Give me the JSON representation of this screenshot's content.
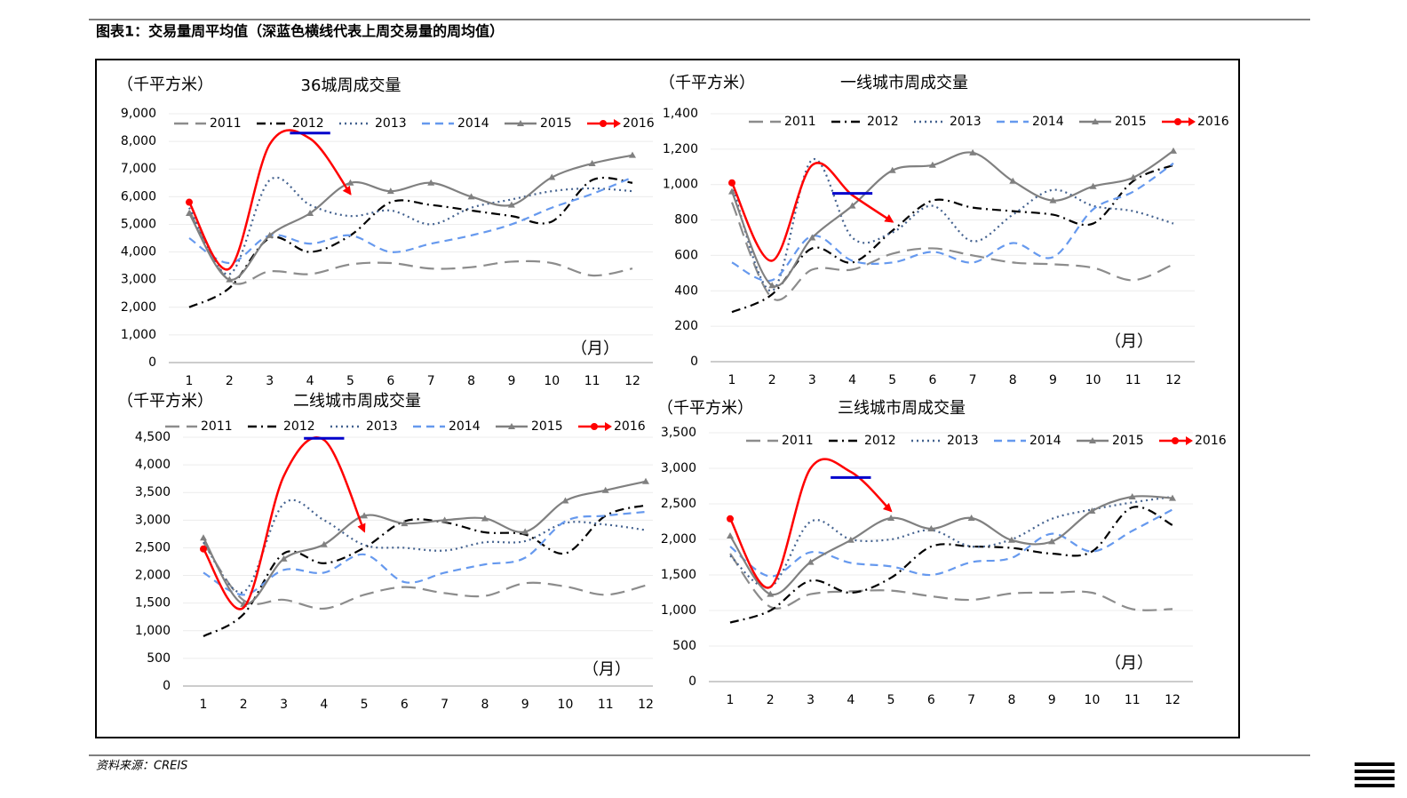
{
  "header": {
    "title": "图表1：交易量周平均值（深蓝色横线代表上周交易量的周均值）"
  },
  "source": "资料来源：CREIS",
  "chart_data": [
    {
      "type": "line",
      "title": "36城周成交量",
      "unit_label": "（千平方米）",
      "x_label": "（月）",
      "categories": [
        "1",
        "2",
        "3",
        "4",
        "5",
        "6",
        "7",
        "8",
        "9",
        "10",
        "11",
        "12"
      ],
      "ylim": [
        0,
        9000
      ],
      "yticks": [
        {
          "value": 0,
          "label": "0"
        },
        {
          "value": 1000,
          "label": "1,000"
        },
        {
          "value": 2000,
          "label": "2,000"
        },
        {
          "value": 3000,
          "label": "3,000"
        },
        {
          "value": 4000,
          "label": "4,000"
        },
        {
          "value": 5000,
          "label": "5,000"
        },
        {
          "value": 6000,
          "label": "6,000"
        },
        {
          "value": 7000,
          "label": "7,000"
        },
        {
          "value": 8000,
          "label": "8,000"
        },
        {
          "value": 9000,
          "label": "9,000"
        }
      ],
      "grid": true,
      "reference_line": {
        "value": 8300,
        "color": "#0000cc"
      },
      "series": [
        {
          "name": "2011",
          "color": "#8c8c8c",
          "dash": "16,8",
          "values": [
            5500,
            2950,
            3300,
            3200,
            3550,
            3600,
            3400,
            3450,
            3650,
            3600,
            3150,
            3400
          ]
        },
        {
          "name": "2012",
          "color": "#000000",
          "dash": "10,5,2,5",
          "values": [
            2000,
            2700,
            4500,
            4000,
            4600,
            5800,
            5700,
            5500,
            5300,
            5100,
            6600,
            6500
          ]
        },
        {
          "name": "2013",
          "color": "#44628f",
          "dash": "2,4",
          "values": [
            5600,
            3200,
            6600,
            5700,
            5300,
            5500,
            5000,
            5600,
            5900,
            6200,
            6300,
            6200
          ]
        },
        {
          "name": "2014",
          "color": "#6699ee",
          "dash": "9,6",
          "values": [
            4500,
            3600,
            4600,
            4300,
            4600,
            4000,
            4300,
            4600,
            5000,
            5600,
            6100,
            6700
          ]
        },
        {
          "name": "2015",
          "color": "#808080",
          "marker": "triangle",
          "values": [
            5400,
            3000,
            4600,
            5400,
            6500,
            6200,
            6500,
            6000,
            5700,
            6700,
            7200,
            7500
          ]
        },
        {
          "name": "2016",
          "color": "#ff0000",
          "marker": "circle",
          "values": [
            5800,
            3400,
            7900,
            8100,
            6100,
            null,
            null,
            null,
            null,
            null,
            null,
            null
          ]
        }
      ]
    },
    {
      "type": "line",
      "title": "一线城市周成交量",
      "unit_label": "（千平方米）",
      "x_label": "（月）",
      "categories": [
        "1",
        "2",
        "3",
        "4",
        "5",
        "6",
        "7",
        "8",
        "9",
        "10",
        "11",
        "12"
      ],
      "ylim": [
        0,
        1400
      ],
      "yticks": [
        0,
        200,
        400,
        600,
        800,
        {
          "value": 1000,
          "label": "1,000"
        },
        {
          "value": 1200,
          "label": "1,200"
        },
        {
          "value": 1400,
          "label": "1,400"
        }
      ],
      "grid": true,
      "reference_line": {
        "value": 950,
        "color": "#0000cc"
      },
      "series": [
        {
          "name": "2011",
          "color": "#8c8c8c",
          "dash": "16,8",
          "values": [
            900,
            360,
            520,
            520,
            610,
            640,
            600,
            560,
            550,
            530,
            460,
            550
          ]
        },
        {
          "name": "2012",
          "color": "#000000",
          "dash": "10,5,2,5",
          "values": [
            280,
            380,
            640,
            560,
            740,
            910,
            870,
            850,
            830,
            780,
            1020,
            1110
          ]
        },
        {
          "name": "2013",
          "color": "#44628f",
          "dash": "2,4",
          "values": [
            1000,
            400,
            1140,
            700,
            730,
            880,
            680,
            830,
            970,
            880,
            850,
            780
          ]
        },
        {
          "name": "2014",
          "color": "#6699ee",
          "dash": "9,6",
          "values": [
            560,
            460,
            710,
            570,
            560,
            620,
            560,
            670,
            590,
            860,
            960,
            1120
          ]
        },
        {
          "name": "2015",
          "color": "#808080",
          "marker": "triangle",
          "values": [
            960,
            430,
            700,
            880,
            1080,
            1110,
            1180,
            1020,
            910,
            990,
            1040,
            1190
          ]
        },
        {
          "name": "2016",
          "color": "#ff0000",
          "marker": "circle",
          "values": [
            1010,
            570,
            1110,
            940,
            790,
            null,
            null,
            null,
            null,
            null,
            null,
            null
          ]
        }
      ]
    },
    {
      "type": "line",
      "title": "二线城市周成交量",
      "unit_label": "（千平方米）",
      "x_label": "（月）",
      "categories": [
        "1",
        "2",
        "3",
        "4",
        "5",
        "6",
        "7",
        "8",
        "9",
        "10",
        "11",
        "12"
      ],
      "ylim": [
        0,
        4500
      ],
      "yticks": [
        0,
        500,
        {
          "value": 1000,
          "label": "1,000"
        },
        {
          "value": 1500,
          "label": "1,500"
        },
        {
          "value": 2000,
          "label": "2,000"
        },
        {
          "value": 2500,
          "label": "2,500"
        },
        {
          "value": 3000,
          "label": "3,000"
        },
        {
          "value": 3500,
          "label": "3,500"
        },
        {
          "value": 4000,
          "label": "4,000"
        },
        {
          "value": 4500,
          "label": "4,500"
        }
      ],
      "grid": true,
      "reference_line": {
        "value": 4480,
        "color": "#0000cc"
      },
      "series": [
        {
          "name": "2011",
          "color": "#8c8c8c",
          "dash": "16,8",
          "values": [
            2600,
            1550,
            1560,
            1400,
            1650,
            1790,
            1680,
            1630,
            1860,
            1800,
            1650,
            1820
          ]
        },
        {
          "name": "2012",
          "color": "#000000",
          "dash": "10,5,2,5",
          "values": [
            900,
            1300,
            2400,
            2220,
            2500,
            2980,
            2960,
            2780,
            2740,
            2400,
            3080,
            3270
          ]
        },
        {
          "name": "2013",
          "color": "#44628f",
          "dash": "2,4",
          "values": [
            2600,
            1700,
            3300,
            3000,
            2550,
            2500,
            2450,
            2600,
            2620,
            2950,
            2920,
            2820
          ]
        },
        {
          "name": "2014",
          "color": "#6699ee",
          "dash": "9,6",
          "values": [
            2050,
            1650,
            2100,
            2050,
            2380,
            1880,
            2050,
            2200,
            2320,
            2980,
            3080,
            3150
          ]
        },
        {
          "name": "2015",
          "color": "#808080",
          "marker": "triangle",
          "values": [
            2680,
            1480,
            2300,
            2560,
            3080,
            2940,
            3000,
            3030,
            2790,
            3350,
            3540,
            3700
          ]
        },
        {
          "name": "2016",
          "color": "#ff0000",
          "marker": "circle",
          "values": [
            2480,
            1420,
            3800,
            4450,
            2800,
            null,
            null,
            null,
            null,
            null,
            null,
            null
          ]
        }
      ]
    },
    {
      "type": "line",
      "title": "三线城市周成交量",
      "unit_label": "（千平方米）",
      "x_label": "（月）",
      "categories": [
        "1",
        "2",
        "3",
        "4",
        "5",
        "6",
        "7",
        "8",
        "9",
        "10",
        "11",
        "12"
      ],
      "ylim": [
        0,
        3500
      ],
      "yticks": [
        0,
        500,
        {
          "value": 1000,
          "label": "1,000"
        },
        {
          "value": 1500,
          "label": "1,500"
        },
        {
          "value": 2000,
          "label": "2,000"
        },
        {
          "value": 2500,
          "label": "2,500"
        },
        {
          "value": 3000,
          "label": "3,000"
        },
        {
          "value": 3500,
          "label": "3,500"
        }
      ],
      "grid": true,
      "reference_line": {
        "value": 2870,
        "color": "#0000cc"
      },
      "series": [
        {
          "name": "2011",
          "color": "#8c8c8c",
          "dash": "16,8",
          "values": [
            1800,
            1050,
            1230,
            1270,
            1280,
            1200,
            1150,
            1240,
            1250,
            1250,
            1020,
            1020
          ]
        },
        {
          "name": "2012",
          "color": "#000000",
          "dash": "10,5,2,5",
          "values": [
            830,
            1000,
            1420,
            1250,
            1460,
            1900,
            1900,
            1880,
            1800,
            1830,
            2450,
            2200
          ]
        },
        {
          "name": "2013",
          "color": "#44628f",
          "dash": "2,4",
          "values": [
            1770,
            1330,
            2250,
            2000,
            2000,
            2130,
            1900,
            2000,
            2290,
            2420,
            2520,
            2600
          ]
        },
        {
          "name": "2014",
          "color": "#6699ee",
          "dash": "9,6",
          "values": [
            1900,
            1480,
            1820,
            1670,
            1620,
            1500,
            1680,
            1740,
            2080,
            1830,
            2120,
            2420
          ]
        },
        {
          "name": "2015",
          "color": "#808080",
          "marker": "triangle",
          "values": [
            2050,
            1230,
            1680,
            1990,
            2300,
            2150,
            2300,
            1990,
            1970,
            2400,
            2600,
            2580
          ]
        },
        {
          "name": "2016",
          "color": "#ff0000",
          "marker": "circle",
          "values": [
            2290,
            1330,
            3000,
            2950,
            2400,
            null,
            null,
            null,
            null,
            null,
            null,
            null
          ]
        }
      ]
    }
  ]
}
